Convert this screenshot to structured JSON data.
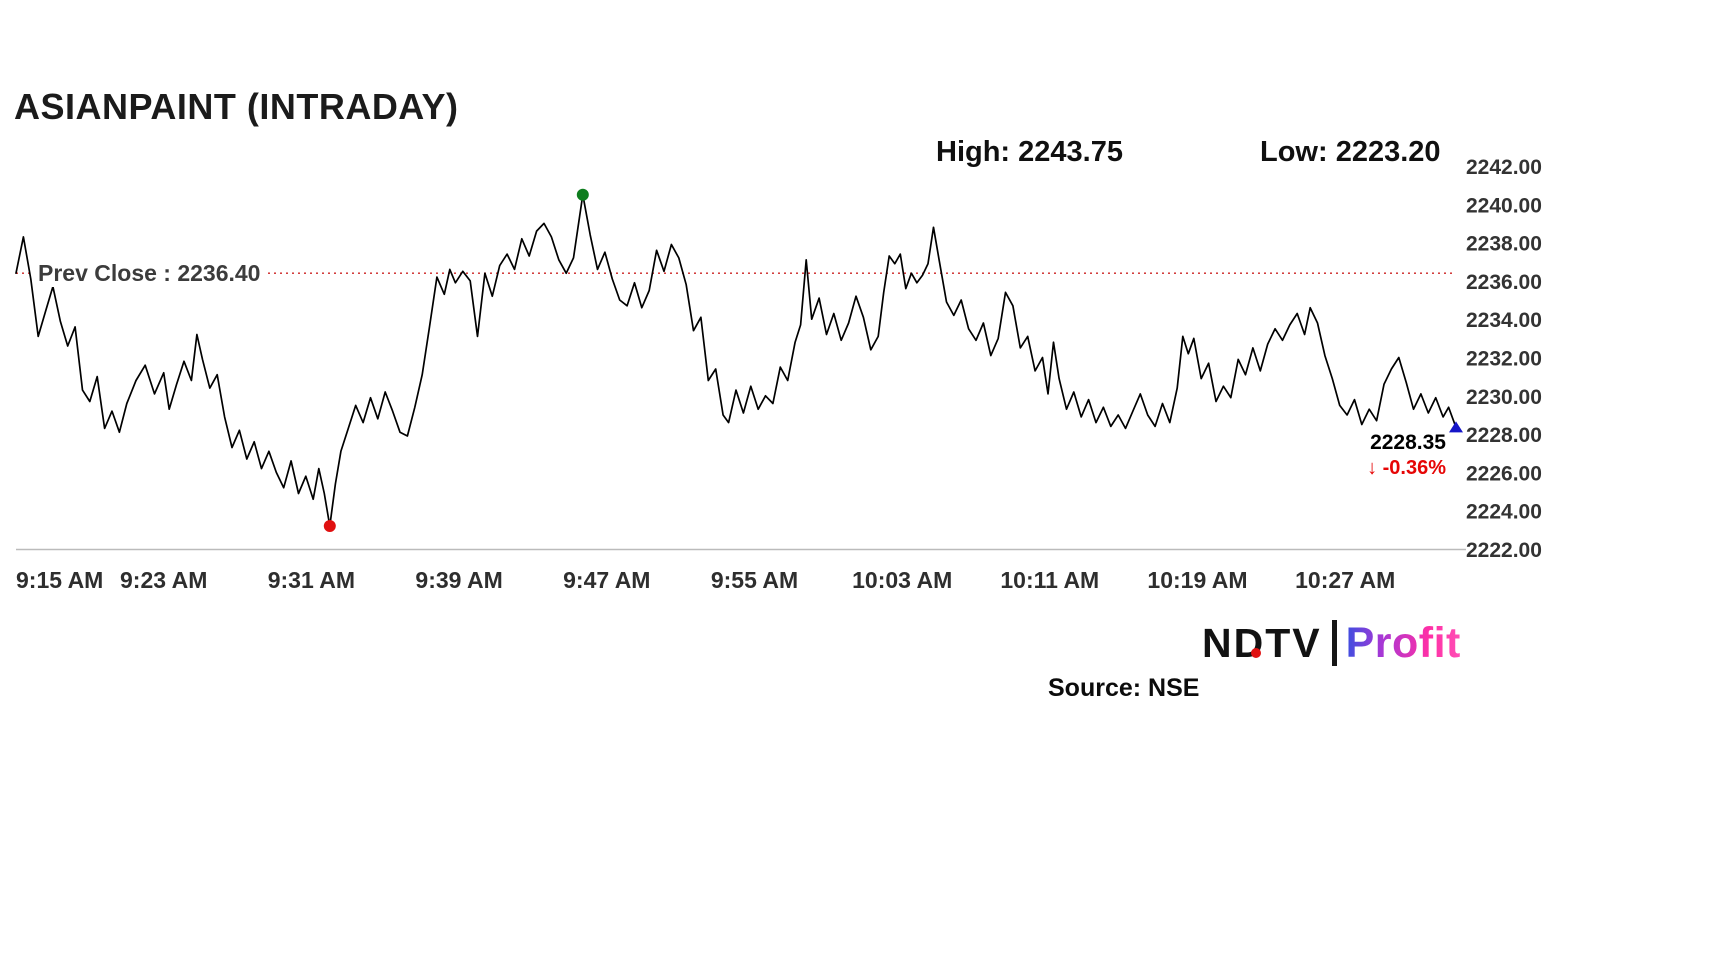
{
  "header": {
    "title": "ASIANPAINT (INTRADAY)",
    "high_label": "High: 2243.75",
    "low_label": "Low: 2223.20"
  },
  "annotations": {
    "prev_close_label": "Prev Close : 2236.40",
    "last_price": "2228.35",
    "change_arrow": "↓",
    "change_pct_label": "-0.36%"
  },
  "footer": {
    "source": "Source: NSE",
    "logo_ndtv": "NDTV",
    "logo_profit": "Profit"
  },
  "chart_data": {
    "type": "line",
    "title": "ASIANPAINT (INTRADAY)",
    "x_unit": "minutes since 9:15 AM",
    "x_tick_labels": [
      "9:15 AM",
      "9:23 AM",
      "9:31 AM",
      "9:39 AM",
      "9:47 AM",
      "9:55 AM",
      "10:03 AM",
      "10:11 AM",
      "10:19 AM",
      "10:27 AM"
    ],
    "x_tick_minutes": [
      0,
      8,
      16,
      24,
      32,
      40,
      48,
      56,
      64,
      72
    ],
    "y_tick_labels": [
      "2242.00",
      "2240.00",
      "2238.00",
      "2236.00",
      "2234.00",
      "2232.00",
      "2230.00",
      "2228.00",
      "2226.00",
      "2224.00",
      "2222.00"
    ],
    "ylim": [
      2222,
      2242
    ],
    "xlim_minutes": [
      0,
      78
    ],
    "grid": false,
    "legend": "none",
    "prev_close": 2236.4,
    "high": 2243.75,
    "low": 2223.2,
    "last": 2228.35,
    "change_pct": -0.36,
    "colors": {
      "line": "#000000",
      "prev_close_line": "#cc2222",
      "change_text": "#e60606",
      "high_marker": "#0e7d1e",
      "low_marker": "#e01010",
      "last_marker": "#1515c8",
      "axis_line": "#bbbbbb"
    },
    "markers": {
      "high_point": {
        "t": 30.7,
        "price": 2240.5
      },
      "low_point": {
        "t": 17,
        "price": 2223.2
      },
      "last_point": {
        "t": 78,
        "price": 2228.35
      }
    },
    "series": [
      {
        "name": "ASIANPAINT price",
        "points": [
          [
            0,
            2236.4
          ],
          [
            0.4,
            2238.3
          ],
          [
            0.8,
            2236.1
          ],
          [
            1.2,
            2233.1
          ],
          [
            1.6,
            2234.4
          ],
          [
            2,
            2235.7
          ],
          [
            2.4,
            2233.9
          ],
          [
            2.8,
            2232.6
          ],
          [
            3.2,
            2233.6
          ],
          [
            3.6,
            2230.3
          ],
          [
            4,
            2229.7
          ],
          [
            4.4,
            2231
          ],
          [
            4.8,
            2228.3
          ],
          [
            5.2,
            2229.2
          ],
          [
            5.6,
            2228.1
          ],
          [
            6,
            2229.6
          ],
          [
            6.5,
            2230.8
          ],
          [
            7,
            2231.6
          ],
          [
            7.5,
            2230.1
          ],
          [
            8,
            2231.2
          ],
          [
            8.3,
            2229.3
          ],
          [
            8.7,
            2230.6
          ],
          [
            9.1,
            2231.8
          ],
          [
            9.5,
            2230.8
          ],
          [
            9.8,
            2233.2
          ],
          [
            10.1,
            2231.9
          ],
          [
            10.5,
            2230.4
          ],
          [
            10.9,
            2231.1
          ],
          [
            11.3,
            2228.9
          ],
          [
            11.7,
            2227.3
          ],
          [
            12.1,
            2228.2
          ],
          [
            12.5,
            2226.7
          ],
          [
            12.9,
            2227.6
          ],
          [
            13.3,
            2226.2
          ],
          [
            13.7,
            2227.1
          ],
          [
            14.1,
            2226
          ],
          [
            14.5,
            2225.2
          ],
          [
            14.9,
            2226.6
          ],
          [
            15.3,
            2224.9
          ],
          [
            15.7,
            2225.8
          ],
          [
            16.1,
            2224.6
          ],
          [
            16.4,
            2226.2
          ],
          [
            16.7,
            2224.9
          ],
          [
            17,
            2223.2
          ],
          [
            17.3,
            2225.4
          ],
          [
            17.6,
            2227.1
          ],
          [
            18,
            2228.3
          ],
          [
            18.4,
            2229.5
          ],
          [
            18.8,
            2228.6
          ],
          [
            19.2,
            2229.9
          ],
          [
            19.6,
            2228.8
          ],
          [
            20,
            2230.2
          ],
          [
            20.4,
            2229.2
          ],
          [
            20.8,
            2228.1
          ],
          [
            21.2,
            2227.9
          ],
          [
            21.6,
            2229.4
          ],
          [
            22,
            2231.1
          ],
          [
            22.4,
            2233.6
          ],
          [
            22.8,
            2236.2
          ],
          [
            23.2,
            2235.3
          ],
          [
            23.5,
            2236.6
          ],
          [
            23.8,
            2235.9
          ],
          [
            24.2,
            2236.5
          ],
          [
            24.6,
            2236
          ],
          [
            25,
            2233.1
          ],
          [
            25.4,
            2236.4
          ],
          [
            25.8,
            2235.2
          ],
          [
            26.2,
            2236.8
          ],
          [
            26.6,
            2237.4
          ],
          [
            27,
            2236.6
          ],
          [
            27.4,
            2238.2
          ],
          [
            27.8,
            2237.3
          ],
          [
            28.2,
            2238.6
          ],
          [
            28.6,
            2239
          ],
          [
            29,
            2238.3
          ],
          [
            29.4,
            2237.1
          ],
          [
            29.8,
            2236.4
          ],
          [
            30.2,
            2237.2
          ],
          [
            30.7,
            2240.5
          ],
          [
            31.1,
            2238.4
          ],
          [
            31.5,
            2236.6
          ],
          [
            31.9,
            2237.5
          ],
          [
            32.3,
            2236.1
          ],
          [
            32.7,
            2235
          ],
          [
            33.1,
            2234.7
          ],
          [
            33.5,
            2235.9
          ],
          [
            33.9,
            2234.6
          ],
          [
            34.3,
            2235.5
          ],
          [
            34.7,
            2237.6
          ],
          [
            35.1,
            2236.5
          ],
          [
            35.5,
            2237.9
          ],
          [
            35.9,
            2237.2
          ],
          [
            36.3,
            2235.8
          ],
          [
            36.7,
            2233.4
          ],
          [
            37.1,
            2234.1
          ],
          [
            37.5,
            2230.8
          ],
          [
            37.9,
            2231.4
          ],
          [
            38.3,
            2229
          ],
          [
            38.6,
            2228.6
          ],
          [
            39,
            2230.3
          ],
          [
            39.4,
            2229.1
          ],
          [
            39.8,
            2230.5
          ],
          [
            40.2,
            2229.3
          ],
          [
            40.6,
            2230
          ],
          [
            41,
            2229.6
          ],
          [
            41.4,
            2231.5
          ],
          [
            41.8,
            2230.8
          ],
          [
            42.2,
            2232.8
          ],
          [
            42.5,
            2233.7
          ],
          [
            42.8,
            2237.1
          ],
          [
            43.1,
            2234
          ],
          [
            43.5,
            2235.1
          ],
          [
            43.9,
            2233.2
          ],
          [
            44.3,
            2234.3
          ],
          [
            44.7,
            2232.9
          ],
          [
            45.1,
            2233.8
          ],
          [
            45.5,
            2235.2
          ],
          [
            45.9,
            2234.1
          ],
          [
            46.3,
            2232.4
          ],
          [
            46.7,
            2233.1
          ],
          [
            47,
            2235.4
          ],
          [
            47.3,
            2237.3
          ],
          [
            47.6,
            2236.9
          ],
          [
            47.9,
            2237.4
          ],
          [
            48.2,
            2235.6
          ],
          [
            48.5,
            2236.4
          ],
          [
            48.8,
            2235.9
          ],
          [
            49.1,
            2236.3
          ],
          [
            49.4,
            2236.9
          ],
          [
            49.7,
            2238.8
          ],
          [
            50,
            2237.1
          ],
          [
            50.4,
            2234.9
          ],
          [
            50.8,
            2234.2
          ],
          [
            51.2,
            2235
          ],
          [
            51.6,
            2233.5
          ],
          [
            52,
            2232.9
          ],
          [
            52.4,
            2233.8
          ],
          [
            52.8,
            2232.1
          ],
          [
            53.2,
            2233
          ],
          [
            53.6,
            2235.4
          ],
          [
            54,
            2234.7
          ],
          [
            54.4,
            2232.5
          ],
          [
            54.8,
            2233.1
          ],
          [
            55.2,
            2231.3
          ],
          [
            55.6,
            2232
          ],
          [
            55.9,
            2230.1
          ],
          [
            56.2,
            2232.8
          ],
          [
            56.5,
            2230.9
          ],
          [
            56.9,
            2229.3
          ],
          [
            57.3,
            2230.2
          ],
          [
            57.7,
            2228.9
          ],
          [
            58.1,
            2229.8
          ],
          [
            58.5,
            2228.6
          ],
          [
            58.9,
            2229.4
          ],
          [
            59.3,
            2228.4
          ],
          [
            59.7,
            2229
          ],
          [
            60.1,
            2228.3
          ],
          [
            60.5,
            2229.2
          ],
          [
            60.9,
            2230.1
          ],
          [
            61.3,
            2229
          ],
          [
            61.7,
            2228.4
          ],
          [
            62.1,
            2229.6
          ],
          [
            62.5,
            2228.6
          ],
          [
            62.9,
            2230.4
          ],
          [
            63.2,
            2233.1
          ],
          [
            63.5,
            2232.2
          ],
          [
            63.8,
            2233
          ],
          [
            64.2,
            2230.9
          ],
          [
            64.6,
            2231.7
          ],
          [
            65,
            2229.7
          ],
          [
            65.4,
            2230.5
          ],
          [
            65.8,
            2229.9
          ],
          [
            66.2,
            2231.9
          ],
          [
            66.6,
            2231.1
          ],
          [
            67,
            2232.5
          ],
          [
            67.4,
            2231.3
          ],
          [
            67.8,
            2232.7
          ],
          [
            68.2,
            2233.5
          ],
          [
            68.6,
            2232.9
          ],
          [
            69,
            2233.7
          ],
          [
            69.4,
            2234.3
          ],
          [
            69.8,
            2233.2
          ],
          [
            70.1,
            2234.6
          ],
          [
            70.5,
            2233.8
          ],
          [
            70.9,
            2232.1
          ],
          [
            71.3,
            2230.9
          ],
          [
            71.7,
            2229.5
          ],
          [
            72.1,
            2229
          ],
          [
            72.5,
            2229.8
          ],
          [
            72.9,
            2228.5
          ],
          [
            73.3,
            2229.3
          ],
          [
            73.7,
            2228.7
          ],
          [
            74.1,
            2230.6
          ],
          [
            74.5,
            2231.4
          ],
          [
            74.9,
            2232
          ],
          [
            75.3,
            2230.7
          ],
          [
            75.7,
            2229.3
          ],
          [
            76.1,
            2230.1
          ],
          [
            76.5,
            2229.1
          ],
          [
            76.9,
            2229.9
          ],
          [
            77.3,
            2228.9
          ],
          [
            77.6,
            2229.4
          ],
          [
            78,
            2228.35
          ]
        ]
      }
    ]
  }
}
